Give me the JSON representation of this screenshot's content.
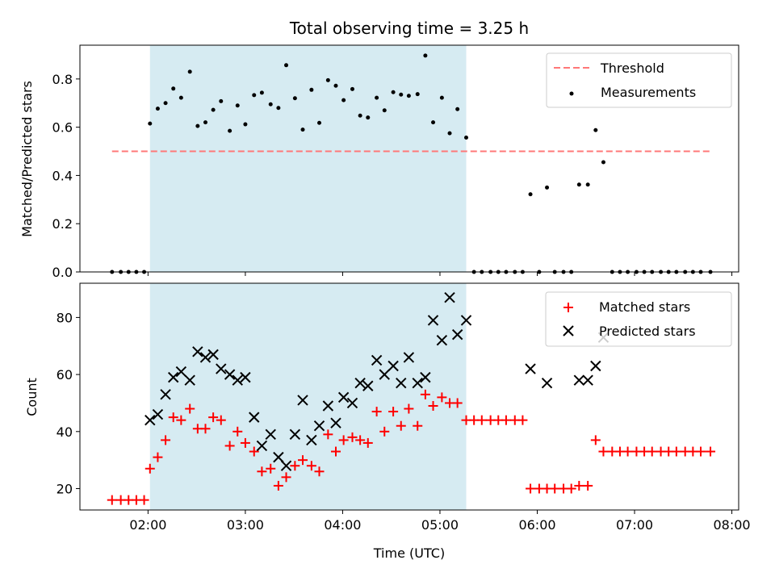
{
  "chart_data": {
    "type": "scatter",
    "title": "Total observing time = 3.25 h",
    "xlabel": "Time (UTC)",
    "xlim": [
      1.3,
      8.07
    ],
    "xticks": [
      {
        "value": 2,
        "label": "02:00"
      },
      {
        "value": 3,
        "label": "03:00"
      },
      {
        "value": 4,
        "label": "04:00"
      },
      {
        "value": 5,
        "label": "05:00"
      },
      {
        "value": 6,
        "label": "06:00"
      },
      {
        "value": 7,
        "label": "07:00"
      },
      {
        "value": 8,
        "label": "08:00"
      }
    ],
    "observing_window": {
      "start": 2.02,
      "end": 5.27,
      "color": "#add8e6"
    },
    "top_panel": {
      "ylabel": "Matched/Predicted stars",
      "ylim": [
        0,
        0.94
      ],
      "yticks": [
        {
          "value": 0,
          "label": "0.0"
        },
        {
          "value": 0.2,
          "label": "0.2"
        },
        {
          "value": 0.4,
          "label": "0.4"
        },
        {
          "value": 0.6,
          "label": "0.6"
        },
        {
          "value": 0.8,
          "label": "0.8"
        }
      ],
      "legend": {
        "threshold_label": "Threshold",
        "measurements_label": "Measurements",
        "position": "upper right"
      },
      "threshold": {
        "value": 0.5,
        "x_start": 1.63,
        "x_end": 7.78,
        "color": "#ff7878"
      },
      "measurements": [
        [
          1.63,
          0
        ],
        [
          1.72,
          0
        ],
        [
          1.8,
          0
        ],
        [
          1.88,
          0
        ],
        [
          1.96,
          0
        ],
        [
          2.02,
          0.615
        ],
        [
          2.1,
          0.677
        ],
        [
          2.18,
          0.7
        ],
        [
          2.26,
          0.76
        ],
        [
          2.34,
          0.722
        ],
        [
          2.43,
          0.83
        ],
        [
          2.51,
          0.605
        ],
        [
          2.59,
          0.62
        ],
        [
          2.67,
          0.672
        ],
        [
          2.75,
          0.708
        ],
        [
          2.84,
          0.585
        ],
        [
          2.92,
          0.69
        ],
        [
          3.0,
          0.612
        ],
        [
          3.09,
          0.733
        ],
        [
          3.17,
          0.743
        ],
        [
          3.26,
          0.695
        ],
        [
          3.34,
          0.68
        ],
        [
          3.42,
          0.857
        ],
        [
          3.51,
          0.72
        ],
        [
          3.59,
          0.59
        ],
        [
          3.68,
          0.755
        ],
        [
          3.76,
          0.618
        ],
        [
          3.85,
          0.795
        ],
        [
          3.93,
          0.772
        ],
        [
          4.01,
          0.712
        ],
        [
          4.1,
          0.758
        ],
        [
          4.18,
          0.648
        ],
        [
          4.26,
          0.64
        ],
        [
          4.35,
          0.722
        ],
        [
          4.43,
          0.67
        ],
        [
          4.52,
          0.745
        ],
        [
          4.6,
          0.735
        ],
        [
          4.68,
          0.73
        ],
        [
          4.77,
          0.737
        ],
        [
          4.85,
          0.897
        ],
        [
          4.93,
          0.62
        ],
        [
          5.02,
          0.722
        ],
        [
          5.1,
          0.575
        ],
        [
          5.18,
          0.675
        ],
        [
          5.27,
          0.557
        ],
        [
          5.35,
          0
        ],
        [
          5.43,
          0
        ],
        [
          5.52,
          0
        ],
        [
          5.6,
          0
        ],
        [
          5.68,
          0
        ],
        [
          5.77,
          0
        ],
        [
          5.85,
          0
        ],
        [
          5.93,
          0.322
        ],
        [
          6.02,
          0
        ],
        [
          6.1,
          0.35
        ],
        [
          6.18,
          0
        ],
        [
          6.27,
          0
        ],
        [
          6.35,
          0
        ],
        [
          6.43,
          0.362
        ],
        [
          6.52,
          0.362
        ],
        [
          6.6,
          0.588
        ],
        [
          6.68,
          0.455
        ],
        [
          6.77,
          0
        ],
        [
          6.85,
          0
        ],
        [
          6.93,
          0
        ],
        [
          7.02,
          0
        ],
        [
          7.1,
          0
        ],
        [
          7.18,
          0
        ],
        [
          7.27,
          0
        ],
        [
          7.35,
          0
        ],
        [
          7.43,
          0
        ],
        [
          7.52,
          0
        ],
        [
          7.6,
          0
        ],
        [
          7.68,
          0
        ],
        [
          7.78,
          0
        ]
      ]
    },
    "bottom_panel": {
      "ylabel": "Count",
      "ylim": [
        12.5,
        92
      ],
      "yticks": [
        {
          "value": 20,
          "label": "20"
        },
        {
          "value": 40,
          "label": "40"
        },
        {
          "value": 60,
          "label": "60"
        },
        {
          "value": 80,
          "label": "80"
        }
      ],
      "legend": {
        "matched_label": "Matched stars",
        "predicted_label": "Predicted stars",
        "position": "upper right"
      },
      "series": [
        {
          "name": "Matched stars",
          "marker": "+",
          "color": "#ff0000",
          "points": [
            [
              1.63,
              16
            ],
            [
              1.72,
              16
            ],
            [
              1.8,
              16
            ],
            [
              1.88,
              16
            ],
            [
              1.96,
              16
            ],
            [
              2.02,
              27
            ],
            [
              2.1,
              31
            ],
            [
              2.18,
              37
            ],
            [
              2.26,
              45
            ],
            [
              2.34,
              44
            ],
            [
              2.43,
              48
            ],
            [
              2.51,
              41
            ],
            [
              2.59,
              41
            ],
            [
              2.67,
              45
            ],
            [
              2.75,
              44
            ],
            [
              2.84,
              35
            ],
            [
              2.92,
              40
            ],
            [
              3.0,
              36
            ],
            [
              3.09,
              33
            ],
            [
              3.17,
              26
            ],
            [
              3.26,
              27
            ],
            [
              3.34,
              21
            ],
            [
              3.42,
              24
            ],
            [
              3.51,
              28
            ],
            [
              3.59,
              30
            ],
            [
              3.68,
              28
            ],
            [
              3.76,
              26
            ],
            [
              3.85,
              39
            ],
            [
              3.93,
              33
            ],
            [
              4.01,
              37
            ],
            [
              4.1,
              38
            ],
            [
              4.18,
              37
            ],
            [
              4.26,
              36
            ],
            [
              4.35,
              47
            ],
            [
              4.43,
              40
            ],
            [
              4.52,
              47
            ],
            [
              4.6,
              42
            ],
            [
              4.68,
              48
            ],
            [
              4.77,
              42
            ],
            [
              4.85,
              53
            ],
            [
              4.93,
              49
            ],
            [
              5.02,
              52
            ],
            [
              5.1,
              50
            ],
            [
              5.18,
              50
            ],
            [
              5.27,
              44
            ],
            [
              5.35,
              44
            ],
            [
              5.43,
              44
            ],
            [
              5.52,
              44
            ],
            [
              5.6,
              44
            ],
            [
              5.68,
              44
            ],
            [
              5.77,
              44
            ],
            [
              5.85,
              44
            ],
            [
              5.93,
              20
            ],
            [
              6.02,
              20
            ],
            [
              6.1,
              20
            ],
            [
              6.18,
              20
            ],
            [
              6.27,
              20
            ],
            [
              6.35,
              20
            ],
            [
              6.43,
              21
            ],
            [
              6.52,
              21
            ],
            [
              6.6,
              37
            ],
            [
              6.68,
              33
            ],
            [
              6.77,
              33
            ],
            [
              6.85,
              33
            ],
            [
              6.93,
              33
            ],
            [
              7.02,
              33
            ],
            [
              7.1,
              33
            ],
            [
              7.18,
              33
            ],
            [
              7.27,
              33
            ],
            [
              7.35,
              33
            ],
            [
              7.43,
              33
            ],
            [
              7.52,
              33
            ],
            [
              7.6,
              33
            ],
            [
              7.68,
              33
            ],
            [
              7.78,
              33
            ]
          ]
        },
        {
          "name": "Predicted stars",
          "marker": "x",
          "color": "#000000",
          "points": [
            [
              2.02,
              44
            ],
            [
              2.1,
              46
            ],
            [
              2.18,
              53
            ],
            [
              2.26,
              59
            ],
            [
              2.34,
              61
            ],
            [
              2.43,
              58
            ],
            [
              2.51,
              68
            ],
            [
              2.59,
              66
            ],
            [
              2.67,
              67
            ],
            [
              2.75,
              62
            ],
            [
              2.84,
              60
            ],
            [
              2.92,
              58
            ],
            [
              3.0,
              59
            ],
            [
              3.09,
              45
            ],
            [
              3.17,
              35
            ],
            [
              3.26,
              39
            ],
            [
              3.34,
              31
            ],
            [
              3.42,
              28
            ],
            [
              3.51,
              39
            ],
            [
              3.59,
              51
            ],
            [
              3.68,
              37
            ],
            [
              3.76,
              42
            ],
            [
              3.85,
              49
            ],
            [
              3.93,
              43
            ],
            [
              4.01,
              52
            ],
            [
              4.1,
              50
            ],
            [
              4.18,
              57
            ],
            [
              4.26,
              56
            ],
            [
              4.35,
              65
            ],
            [
              4.43,
              60
            ],
            [
              4.52,
              63
            ],
            [
              4.6,
              57
            ],
            [
              4.68,
              66
            ],
            [
              4.77,
              57
            ],
            [
              4.85,
              59
            ],
            [
              4.93,
              79
            ],
            [
              5.02,
              72
            ],
            [
              5.1,
              87
            ],
            [
              5.18,
              74
            ],
            [
              5.27,
              79
            ],
            [
              5.93,
              62
            ],
            [
              6.1,
              57
            ],
            [
              6.43,
              58
            ],
            [
              6.52,
              58
            ],
            [
              6.6,
              63
            ],
            [
              6.68,
              73
            ]
          ]
        }
      ]
    }
  }
}
